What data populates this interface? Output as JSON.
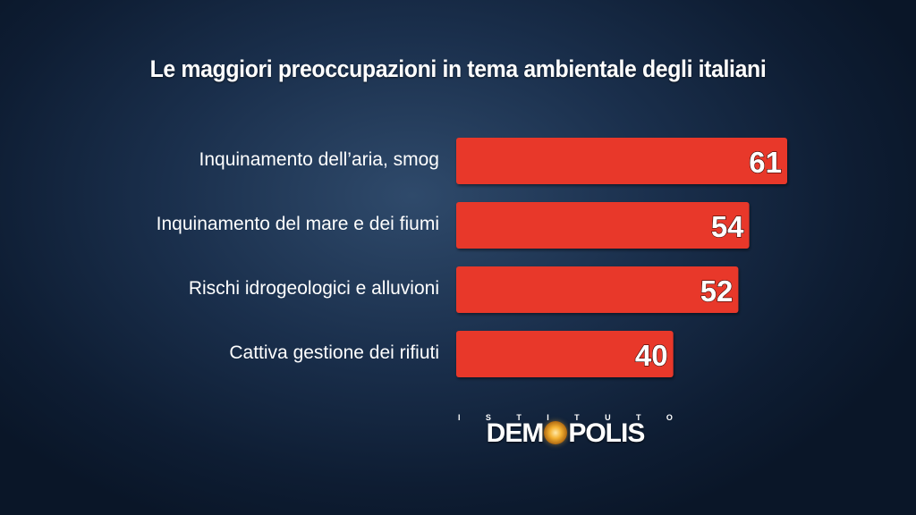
{
  "title": "Le maggiori preoccupazioni in tema ambientale degli italiani",
  "logo": {
    "small_letters": [
      "I",
      "S",
      "T",
      "I",
      "T",
      "U",
      "T",
      "O"
    ],
    "main_before": "DEM",
    "main_after": "POLIS"
  },
  "colors": {
    "bar": "#e8372a",
    "background": "#1a2f4c"
  },
  "chart_data": {
    "type": "bar",
    "orientation": "horizontal",
    "categories": [
      "Inquinamento dell’aria, smog",
      "Inquinamento del mare e dei fiumi",
      "Rischi idrogeologici e alluvioni",
      "Cattiva gestione dei rifiuti"
    ],
    "values": [
      61,
      54,
      52,
      40
    ],
    "data_labels": [
      "61",
      "54",
      "52",
      "40"
    ],
    "title": "Le maggiori preoccupazioni in tema ambientale degli italiani",
    "xlabel": "",
    "ylabel": "",
    "xlim": [
      0,
      100
    ],
    "grid": false,
    "legend": "none"
  }
}
